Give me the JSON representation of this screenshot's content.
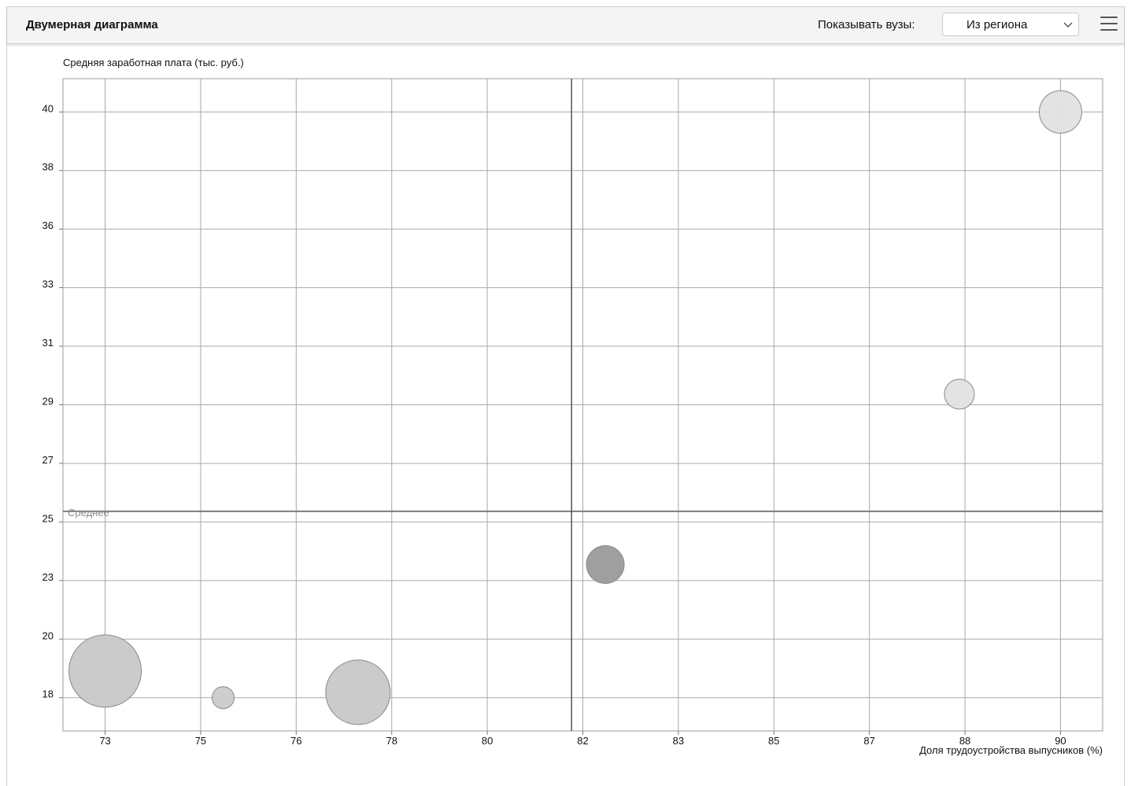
{
  "header": {
    "title": "Двумерная диаграмма",
    "filter_label": "Показывать вузы:",
    "filter_value": "Из региона",
    "menu_icon": "hamburger-menu-icon",
    "chevron_icon": "chevron-down-icon"
  },
  "chart_data": {
    "type": "scatter",
    "title": "",
    "xlabel": "Доля трудоустройства выпусников (%)",
    "ylabel": "Средняя заработная плата (тыс. руб.)",
    "x_ticks": [
      "73",
      "75",
      "76",
      "78",
      "80",
      "82",
      "83",
      "85",
      "87",
      "88",
      "90"
    ],
    "y_ticks": [
      "40",
      "38",
      "36",
      "33",
      "31",
      "29",
      "27",
      "25",
      "23",
      "20",
      "18"
    ],
    "xlim": [
      72.25,
      90.75
    ],
    "ylim": [
      16.75,
      41.25
    ],
    "grid": true,
    "average_x": 81.3,
    "average_y": 25,
    "average_label": "Среднее",
    "points": [
      {
        "x": 73,
        "y": 19,
        "size": 46,
        "color": "#c8c8c8"
      },
      {
        "x": 75.1,
        "y": 18,
        "size": 14,
        "color": "#cbcbcb"
      },
      {
        "x": 77.5,
        "y": 18.2,
        "size": 41,
        "color": "#c8c8c8"
      },
      {
        "x": 81.9,
        "y": 23,
        "size": 24,
        "color": "#9a9a9a"
      },
      {
        "x": 88.2,
        "y": 29.4,
        "size": 19,
        "color": "#e2e2e2"
      },
      {
        "x": 90,
        "y": 40,
        "size": 27,
        "color": "#e2e2e2"
      }
    ]
  }
}
